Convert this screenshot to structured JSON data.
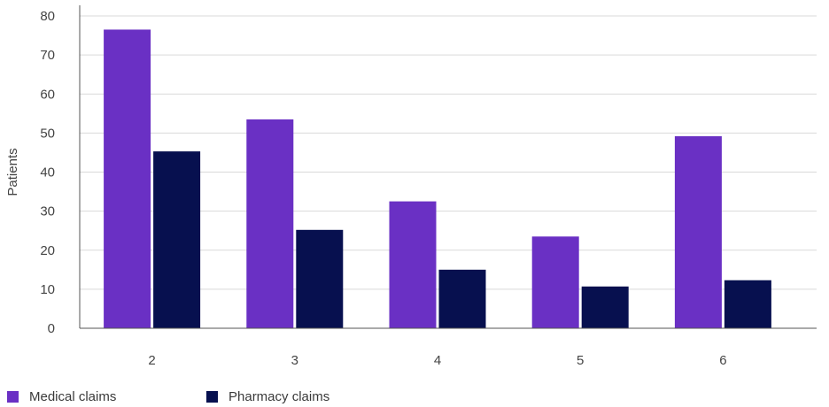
{
  "chart_data": {
    "type": "bar",
    "categories": [
      "2",
      "3",
      "4",
      "5",
      "6"
    ],
    "series": [
      {
        "name": "Medical claims",
        "values": [
          76.5,
          53.5,
          32.5,
          23.5,
          49.2
        ],
        "color": "#6a30c4"
      },
      {
        "name": "Pharmacy claims",
        "values": [
          45.3,
          25.2,
          15.0,
          10.7,
          12.3
        ],
        "color": "#07104f"
      }
    ],
    "ylabel": "Patients",
    "xlabel": "",
    "ylim": [
      0,
      80
    ],
    "yticks": [
      0,
      10,
      20,
      30,
      40,
      50,
      60,
      70,
      80
    ],
    "grid": true,
    "legend_position": "bottom-left"
  }
}
